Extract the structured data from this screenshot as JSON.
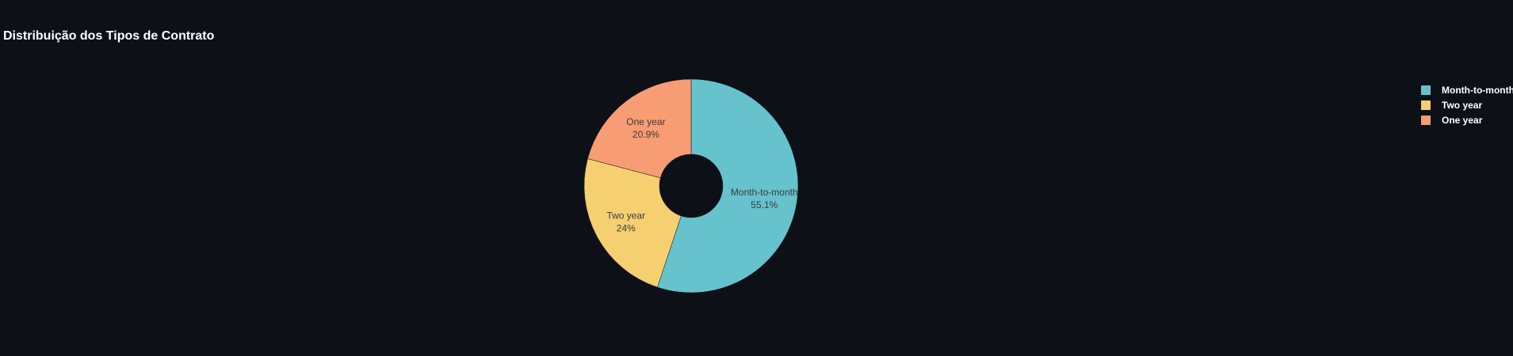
{
  "chart_data": {
    "type": "pie",
    "title": "Distribuição dos Tipos de Contrato",
    "hole": true,
    "legend_position": "right",
    "slices": [
      {
        "label": "Month-to-month",
        "percent_label": "55.1%",
        "value": 55.1,
        "color": "#66c2cc"
      },
      {
        "label": "Two year",
        "percent_label": "24%",
        "value": 24.0,
        "color": "#f6cf71"
      },
      {
        "label": "One year",
        "percent_label": "20.9%",
        "value": 20.9,
        "color": "#f89c74"
      }
    ]
  },
  "colors": {
    "background": "#0d1117",
    "text": "#ffffff",
    "slice_text": "#3b3b3b",
    "slice_border": "#0d1117"
  }
}
